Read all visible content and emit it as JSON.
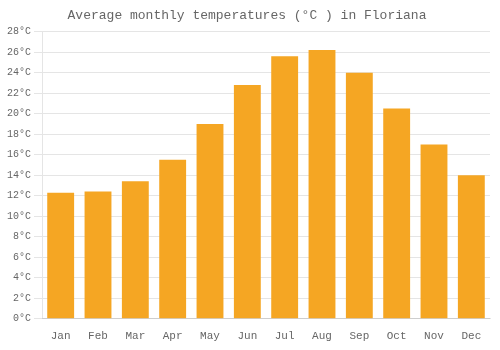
{
  "chart_data": {
    "type": "bar",
    "title": "Average monthly temperatures (°C ) in Floriana",
    "categories": [
      "Jan",
      "Feb",
      "Mar",
      "Apr",
      "May",
      "Jun",
      "Jul",
      "Aug",
      "Sep",
      "Oct",
      "Nov",
      "Dec"
    ],
    "values": [
      12.3,
      12.4,
      13.4,
      15.5,
      19.0,
      22.8,
      25.6,
      26.2,
      24.0,
      20.5,
      17.0,
      14.0
    ],
    "color": "#F5A623",
    "ylim": [
      0,
      28
    ],
    "yticks": [
      {
        "value": 0,
        "label": "0°C"
      },
      {
        "value": 2,
        "label": "2°C"
      },
      {
        "value": 4,
        "label": "4°C"
      },
      {
        "value": 6,
        "label": "6°C"
      },
      {
        "value": 8,
        "label": "8°C"
      },
      {
        "value": 10,
        "label": "10°C"
      },
      {
        "value": 12,
        "label": "12°C"
      },
      {
        "value": 14,
        "label": "14°C"
      },
      {
        "value": 16,
        "label": "16°C"
      },
      {
        "value": 18,
        "label": "18°C"
      },
      {
        "value": 20,
        "label": "20°C"
      },
      {
        "value": 22,
        "label": "22°C"
      },
      {
        "value": 24,
        "label": "24°C"
      },
      {
        "value": 26,
        "label": "26°C"
      },
      {
        "value": 28,
        "label": "28°C"
      }
    ],
    "grid": true
  }
}
